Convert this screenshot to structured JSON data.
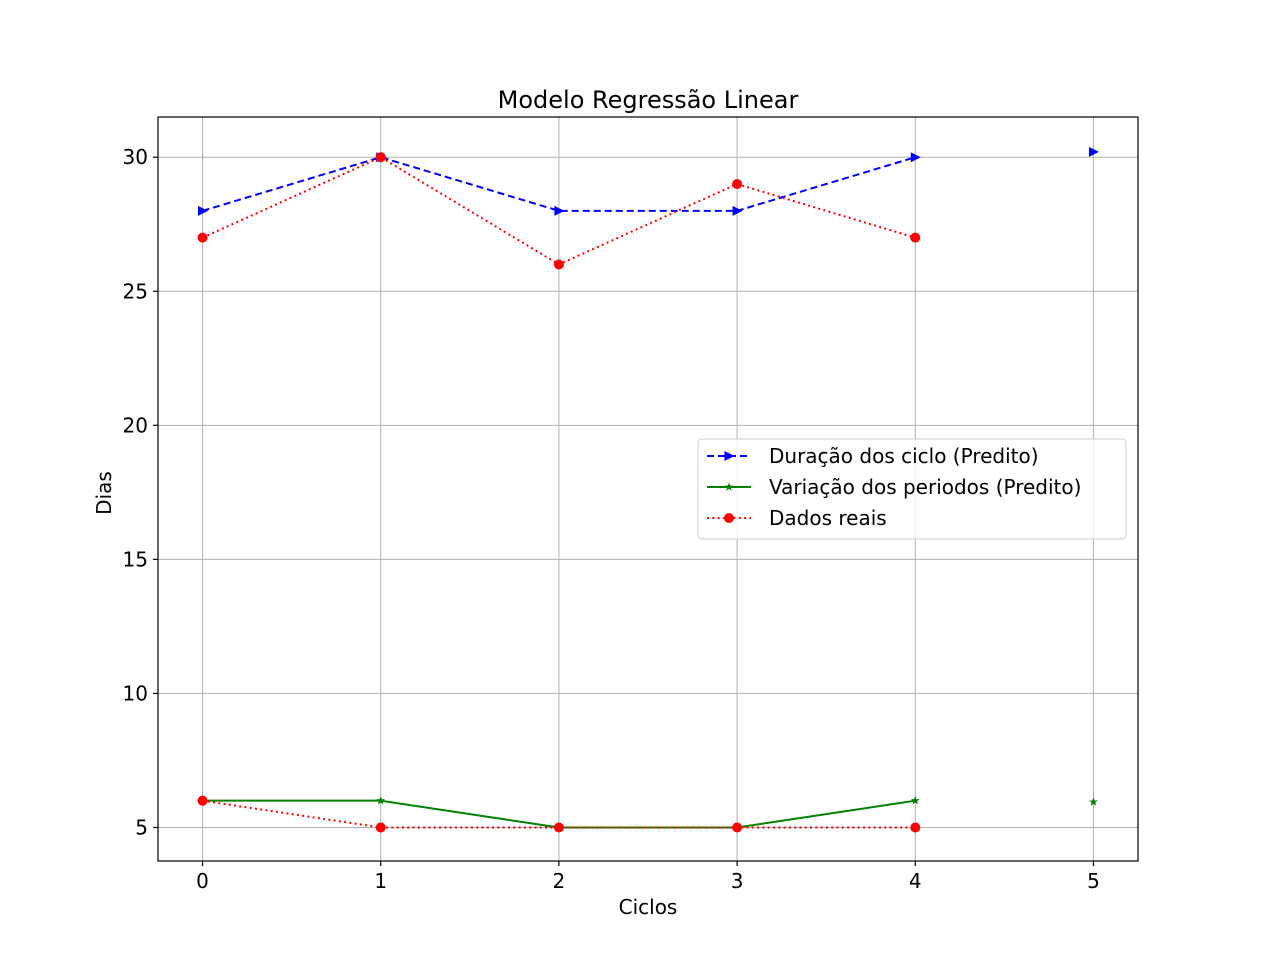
{
  "chart_data": {
    "type": "line",
    "title": "Modelo Regressão Linear",
    "xlabel": "Ciclos",
    "ylabel": "Dias",
    "xlim": [
      -0.25,
      5.25
    ],
    "ylim": [
      3.75,
      31.5
    ],
    "xticks": [
      0,
      1,
      2,
      3,
      4,
      5
    ],
    "yticks": [
      5,
      10,
      15,
      20,
      25,
      30
    ],
    "grid": true,
    "legend_position": "center-right",
    "legend": [
      {
        "label": "Duração dos ciclo (Predito)",
        "color": "#0000ff",
        "linestyle": "dashed",
        "marker": "triangle-right"
      },
      {
        "label": "Variação dos periodos (Predito)",
        "color": "#008000",
        "linestyle": "solid",
        "marker": "star"
      },
      {
        "label": "Dados reais",
        "color": "#ff0000",
        "linestyle": "dotted",
        "marker": "circle"
      }
    ],
    "series": [
      {
        "name": "Duração dos ciclo (Predito)",
        "color": "#0000ff",
        "linestyle": "dashed",
        "marker": "triangle-right",
        "x": [
          0,
          1,
          2,
          3,
          4
        ],
        "values": [
          28,
          30,
          28,
          28,
          30
        ]
      },
      {
        "name": "Variação dos periodos (Predito)",
        "color": "#008000",
        "linestyle": "solid",
        "marker": "star",
        "x": [
          0,
          1,
          2,
          3,
          4
        ],
        "values": [
          6,
          6,
          5,
          5,
          6
        ]
      },
      {
        "name": "Dados reais",
        "color": "#ff0000",
        "linestyle": "dotted",
        "marker": "circle",
        "x": [
          0,
          1,
          2,
          3,
          4
        ],
        "values": [
          27,
          30,
          26,
          29,
          27
        ]
      },
      {
        "name": "Dados reais",
        "color": "#ff0000",
        "linestyle": "dotted",
        "marker": "circle",
        "x": [
          0,
          1,
          2,
          3,
          4
        ],
        "values": [
          6,
          5,
          5,
          5,
          5
        ]
      },
      {
        "color": "#0000ff",
        "linestyle": "none",
        "marker": "triangle-right",
        "x": [
          5
        ],
        "values": [
          30.2
        ]
      },
      {
        "color": "#008000",
        "linestyle": "none",
        "marker": "star",
        "x": [
          5
        ],
        "values": [
          5.95
        ]
      }
    ]
  }
}
